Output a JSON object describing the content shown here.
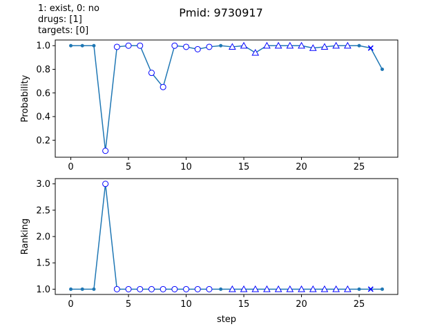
{
  "figure": {
    "title": "Pmid: 9730917",
    "notes": [
      "1: exist,    0: no",
      "drugs: [1]",
      "targets: [0]"
    ],
    "line_color": "#1f77b4",
    "marker_color": "#0000ff"
  },
  "chart_data": [
    {
      "type": "line",
      "name": "probability-panel",
      "title": "",
      "xlabel": "",
      "ylabel": "Probability",
      "xlim": [
        -1.35,
        28.35
      ],
      "ylim": [
        0.056,
        1.048
      ],
      "xticks": [
        0,
        5,
        10,
        15,
        20,
        25
      ],
      "yticks": [
        0.2,
        0.4,
        0.6,
        0.8,
        1.0
      ],
      "ytick_format": 1,
      "x": [
        0,
        1,
        2,
        3,
        4,
        5,
        6,
        7,
        8,
        9,
        10,
        11,
        12,
        13,
        14,
        15,
        16,
        17,
        18,
        19,
        20,
        21,
        22,
        23,
        24,
        25,
        26,
        27
      ],
      "values": [
        1.0,
        1.0,
        1.0,
        0.11,
        0.99,
        1.0,
        1.0,
        0.77,
        0.65,
        1.0,
        0.99,
        0.97,
        0.99,
        1.0,
        0.99,
        1.0,
        0.94,
        1.0,
        1.0,
        1.0,
        1.0,
        0.98,
        0.99,
        1.0,
        1.0,
        1.0,
        0.98,
        0.8
      ],
      "markers": [
        "dot",
        "dot",
        "dot",
        "circle",
        "circle",
        "circle",
        "circle",
        "circle",
        "circle",
        "circle",
        "circle",
        "circle",
        "circle",
        "dot",
        "triangle",
        "triangle",
        "triangle",
        "triangle",
        "triangle",
        "triangle",
        "triangle",
        "triangle",
        "triangle",
        "triangle",
        "triangle",
        "dot",
        "x",
        "dot"
      ]
    },
    {
      "type": "line",
      "name": "ranking-panel",
      "title": "",
      "xlabel": "step",
      "ylabel": "Ranking",
      "xlim": [
        -1.35,
        28.35
      ],
      "ylim": [
        0.9,
        3.1
      ],
      "xticks": [
        0,
        5,
        10,
        15,
        20,
        25
      ],
      "yticks": [
        1.0,
        1.5,
        2.0,
        2.5,
        3.0
      ],
      "ytick_format": 1,
      "x": [
        0,
        1,
        2,
        3,
        4,
        5,
        6,
        7,
        8,
        9,
        10,
        11,
        12,
        13,
        14,
        15,
        16,
        17,
        18,
        19,
        20,
        21,
        22,
        23,
        24,
        25,
        26,
        27
      ],
      "values": [
        1,
        1,
        1,
        3,
        1,
        1,
        1,
        1,
        1,
        1,
        1,
        1,
        1,
        1,
        1,
        1,
        1,
        1,
        1,
        1,
        1,
        1,
        1,
        1,
        1,
        1,
        1,
        1
      ],
      "markers": [
        "dot",
        "dot",
        "dot",
        "circle",
        "circle",
        "circle",
        "circle",
        "circle",
        "circle",
        "circle",
        "circle",
        "circle",
        "circle",
        "dot",
        "triangle",
        "triangle",
        "triangle",
        "triangle",
        "triangle",
        "triangle",
        "triangle",
        "triangle",
        "triangle",
        "triangle",
        "triangle",
        "dot",
        "x",
        "dot"
      ]
    }
  ]
}
